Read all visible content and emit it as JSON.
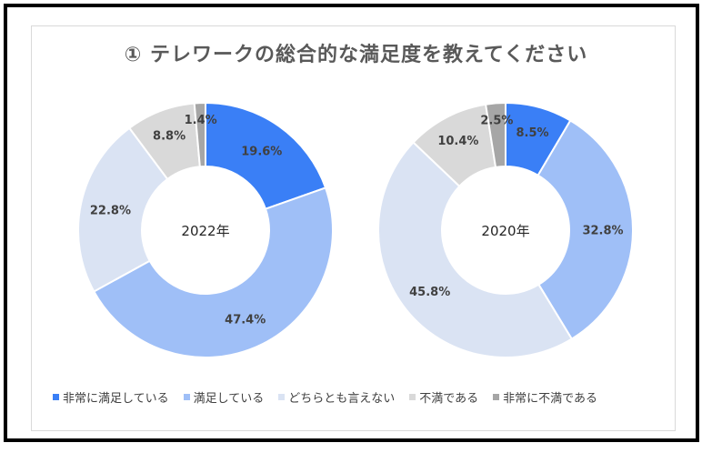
{
  "title": "① テレワークの総合的な満足度を教えてください",
  "categories": [
    "非常に満足している",
    "満足している",
    "どちらとも言えない",
    "不満である",
    "非常に不満である"
  ],
  "colors": [
    "#3a7ff6",
    "#9fbff7",
    "#dae3f3",
    "#d9d9d9",
    "#a6a6a6"
  ],
  "chart_data": [
    {
      "type": "pie",
      "variant": "donut",
      "center_label": "2022年",
      "categories": [
        "非常に満足している",
        "満足している",
        "どちらとも言えない",
        "不満である",
        "非常に不満である"
      ],
      "values": [
        19.6,
        47.4,
        22.8,
        8.8,
        1.4
      ],
      "labels": [
        "19.6%",
        "47.4%",
        "22.8%",
        "8.8%",
        "1.4%"
      ]
    },
    {
      "type": "pie",
      "variant": "donut",
      "center_label": "2020年",
      "categories": [
        "非常に満足している",
        "満足している",
        "どちらとも言えない",
        "不満である",
        "非常に不満である"
      ],
      "values": [
        8.5,
        32.8,
        45.8,
        10.4,
        2.5
      ],
      "labels": [
        "8.5%",
        "32.8%",
        "45.8%",
        "10.4%",
        "2.5%"
      ]
    }
  ],
  "legend_position": "bottom"
}
